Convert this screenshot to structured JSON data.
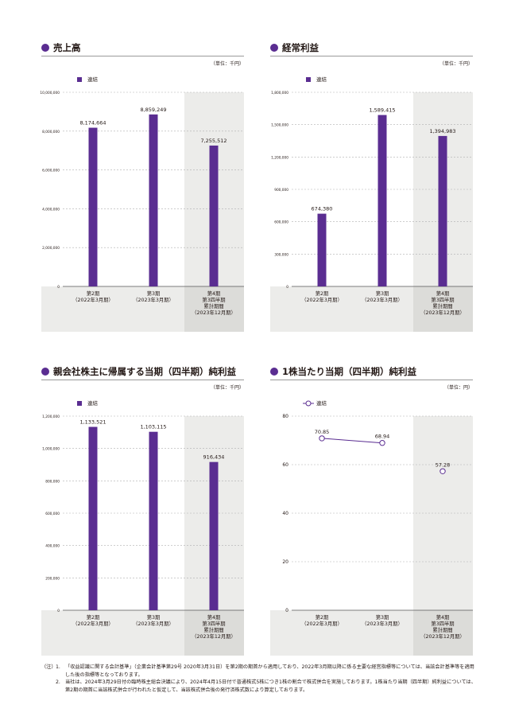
{
  "panels": [
    {
      "title": "売上高",
      "unit": "（単位：千円）",
      "chart_data": {
        "type": "bar",
        "categories": [
          [
            "第2期",
            "（2022年3月期）"
          ],
          [
            "第3期",
            "（2023年3月期）"
          ],
          [
            "第4期",
            "第3四半期",
            "累計期間",
            "（2023年12月期）"
          ]
        ],
        "series": [
          {
            "name": "連結",
            "values": [
              8174664,
              8859249,
              7255512
            ]
          }
        ],
        "data_labels": [
          "8,174,664",
          "8,859,249",
          "7,255,512"
        ],
        "ylim": [
          0,
          10000000
        ],
        "yticks": [
          "0",
          "2,000,000",
          "4,000,000",
          "6,000,000",
          "8,000,000",
          "10,000,000"
        ],
        "highlight_last": true,
        "grid": true
      }
    },
    {
      "title": "経常利益",
      "unit": "（単位：千円）",
      "chart_data": {
        "type": "bar",
        "categories": [
          [
            "第2期",
            "（2022年3月期）"
          ],
          [
            "第3期",
            "（2023年3月期）"
          ],
          [
            "第4期",
            "第3四半期",
            "累計期間",
            "（2023年12月期）"
          ]
        ],
        "series": [
          {
            "name": "連結",
            "values": [
              674380,
              1589415,
              1394983
            ]
          }
        ],
        "data_labels": [
          "674,380",
          "1,589,415",
          "1,394,983"
        ],
        "ylim": [
          0,
          1800000
        ],
        "yticks": [
          "0",
          "300,000",
          "600,000",
          "900,000",
          "1,200,000",
          "1,500,000",
          "1,800,000"
        ],
        "highlight_last": true,
        "grid": true
      }
    },
    {
      "title": "親会社株主に帰属する当期（四半期）純利益",
      "unit": "（単位：千円）",
      "chart_data": {
        "type": "bar",
        "categories": [
          [
            "第2期",
            "（2022年3月期）"
          ],
          [
            "第3期",
            "（2023年3月期）"
          ],
          [
            "第4期",
            "第3四半期",
            "累計期間",
            "（2023年12月期）"
          ]
        ],
        "series": [
          {
            "name": "連結",
            "values": [
              1133521,
              1103115,
              916434
            ]
          }
        ],
        "data_labels": [
          "1,133,521",
          "1,103,115",
          "916,434"
        ],
        "ylim": [
          0,
          1200000
        ],
        "yticks": [
          "0",
          "200,000",
          "400,000",
          "600,000",
          "800,000",
          "1,000,000",
          "1,200,000"
        ],
        "highlight_last": true,
        "grid": true
      }
    },
    {
      "title": "1株当たり当期（四半期）純利益",
      "unit": "（単位：円）",
      "chart_data": {
        "type": "line",
        "categories": [
          [
            "第2期",
            "（2022年3月期）"
          ],
          [
            "第3期",
            "（2023年3月期）"
          ],
          [
            "第4期",
            "第3四半期",
            "累計期間",
            "（2023年12月期）"
          ]
        ],
        "series": [
          {
            "name": "連結",
            "values": [
              70.85,
              68.94,
              57.28
            ]
          }
        ],
        "data_labels": [
          "70.85",
          "68.94",
          "57.28"
        ],
        "connect_first": 2,
        "ylim": [
          0,
          80
        ],
        "yticks": [
          "0",
          "20",
          "40",
          "60",
          "80"
        ],
        "highlight_last": true,
        "grid": true
      }
    }
  ],
  "notes": {
    "prefix": "（注）",
    "items": [
      {
        "num": "1.",
        "text": "「収益認識に関する会計基準」（企業会計基準第29号 2020年3月31日）を第2期の期首から適用しており、2022年3月期以降に係る主要な経営指標等については、当該会計基準等を適用した後の指標等となっております。"
      },
      {
        "num": "2.",
        "text": "当社は、2024年3月29日付の臨時株主総会決議により、2024年4月15日付で普通株式5株につき1株の割合で株式併合を実施しております。1株当たり当期（四半期）純利益については、第2期の期首に当該株式併合が行われたと仮定して、当該株式併合後の発行済株式数により算定しております。"
      }
    ]
  },
  "colors": {
    "accent": "#5a2d91",
    "band": "#ececea",
    "grid": "#b0b0b0"
  }
}
